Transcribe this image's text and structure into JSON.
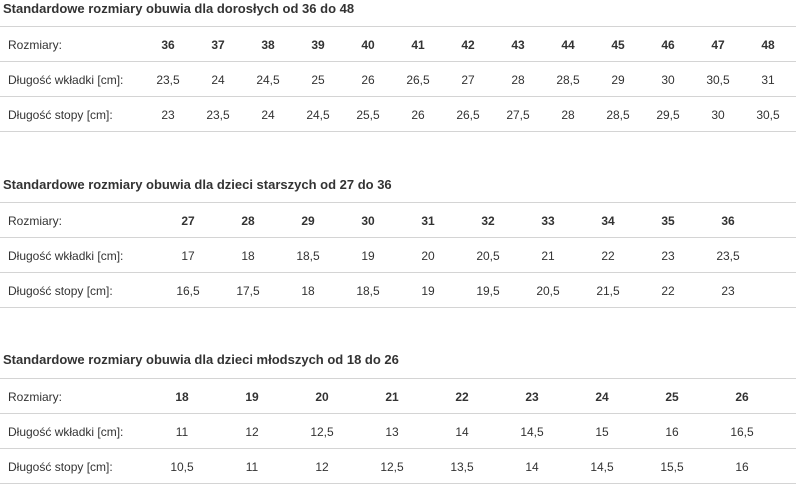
{
  "sections": [
    {
      "title": "Standardowe rozmiary obuwia dla dorosłych od 36 do 48",
      "rows": [
        {
          "label": "Rozmiary:",
          "cells": [
            "36",
            "37",
            "38",
            "39",
            "40",
            "41",
            "42",
            "43",
            "44",
            "45",
            "46",
            "47",
            "48"
          ]
        },
        {
          "label": "Długość wkładki [cm]:",
          "cells": [
            "23,5",
            "24",
            "24,5",
            "25",
            "26",
            "26,5",
            "27",
            "28",
            "28,5",
            "29",
            "30",
            "30,5",
            "31"
          ]
        },
        {
          "label": "Długość stopy [cm]:",
          "cells": [
            "23",
            "23,5",
            "24",
            "24,5",
            "25,5",
            "26",
            "26,5",
            "27,5",
            "28",
            "28,5",
            "29,5",
            "30",
            "30,5"
          ]
        }
      ]
    },
    {
      "title": "Standardowe rozmiary obuwia dla dzieci starszych od 27 do 36",
      "rows": [
        {
          "label": "Rozmiary:",
          "cells": [
            "27",
            "28",
            "29",
            "30",
            "31",
            "32",
            "33",
            "34",
            "35",
            "36"
          ]
        },
        {
          "label": "Długość wkładki [cm]:",
          "cells": [
            "17",
            "18",
            "18,5",
            "19",
            "20",
            "20,5",
            "21",
            "22",
            "23",
            "23,5"
          ]
        },
        {
          "label": "Długość stopy [cm]:",
          "cells": [
            "16,5",
            "17,5",
            "18",
            "18,5",
            "19",
            "19,5",
            "20,5",
            "21,5",
            "22",
            "23"
          ]
        }
      ]
    },
    {
      "title": "Standardowe rozmiary obuwia dla dzieci młodszych od 18 do 26",
      "rows": [
        {
          "label": "Rozmiary:",
          "cells": [
            "18",
            "19",
            "20",
            "21",
            "22",
            "23",
            "24",
            "25",
            "26"
          ]
        },
        {
          "label": "Długość wkładki [cm]:",
          "cells": [
            "11",
            "12",
            "12,5",
            "13",
            "14",
            "14,5",
            "15",
            "16",
            "16,5"
          ]
        },
        {
          "label": "Długość stopy [cm]:",
          "cells": [
            "10,5",
            "11",
            "12",
            "12,5",
            "13,5",
            "14",
            "14,5",
            "15,5",
            "16"
          ]
        }
      ]
    }
  ]
}
